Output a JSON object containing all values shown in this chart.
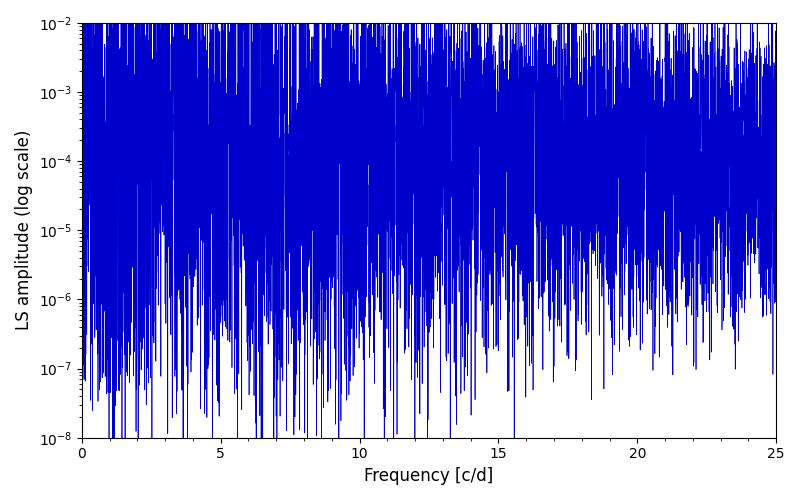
{
  "title": "",
  "xlabel": "Frequency [c/d]",
  "ylabel": "LS amplitude (log scale)",
  "line_color": "#0000cc",
  "xlim": [
    0,
    25
  ],
  "ylim": [
    1e-08,
    0.01
  ],
  "xmin": 0,
  "xmax": 25,
  "n_points": 8000,
  "seed": 137,
  "figsize": [
    8.0,
    5.0
  ],
  "dpi": 100,
  "background_color": "#ffffff"
}
